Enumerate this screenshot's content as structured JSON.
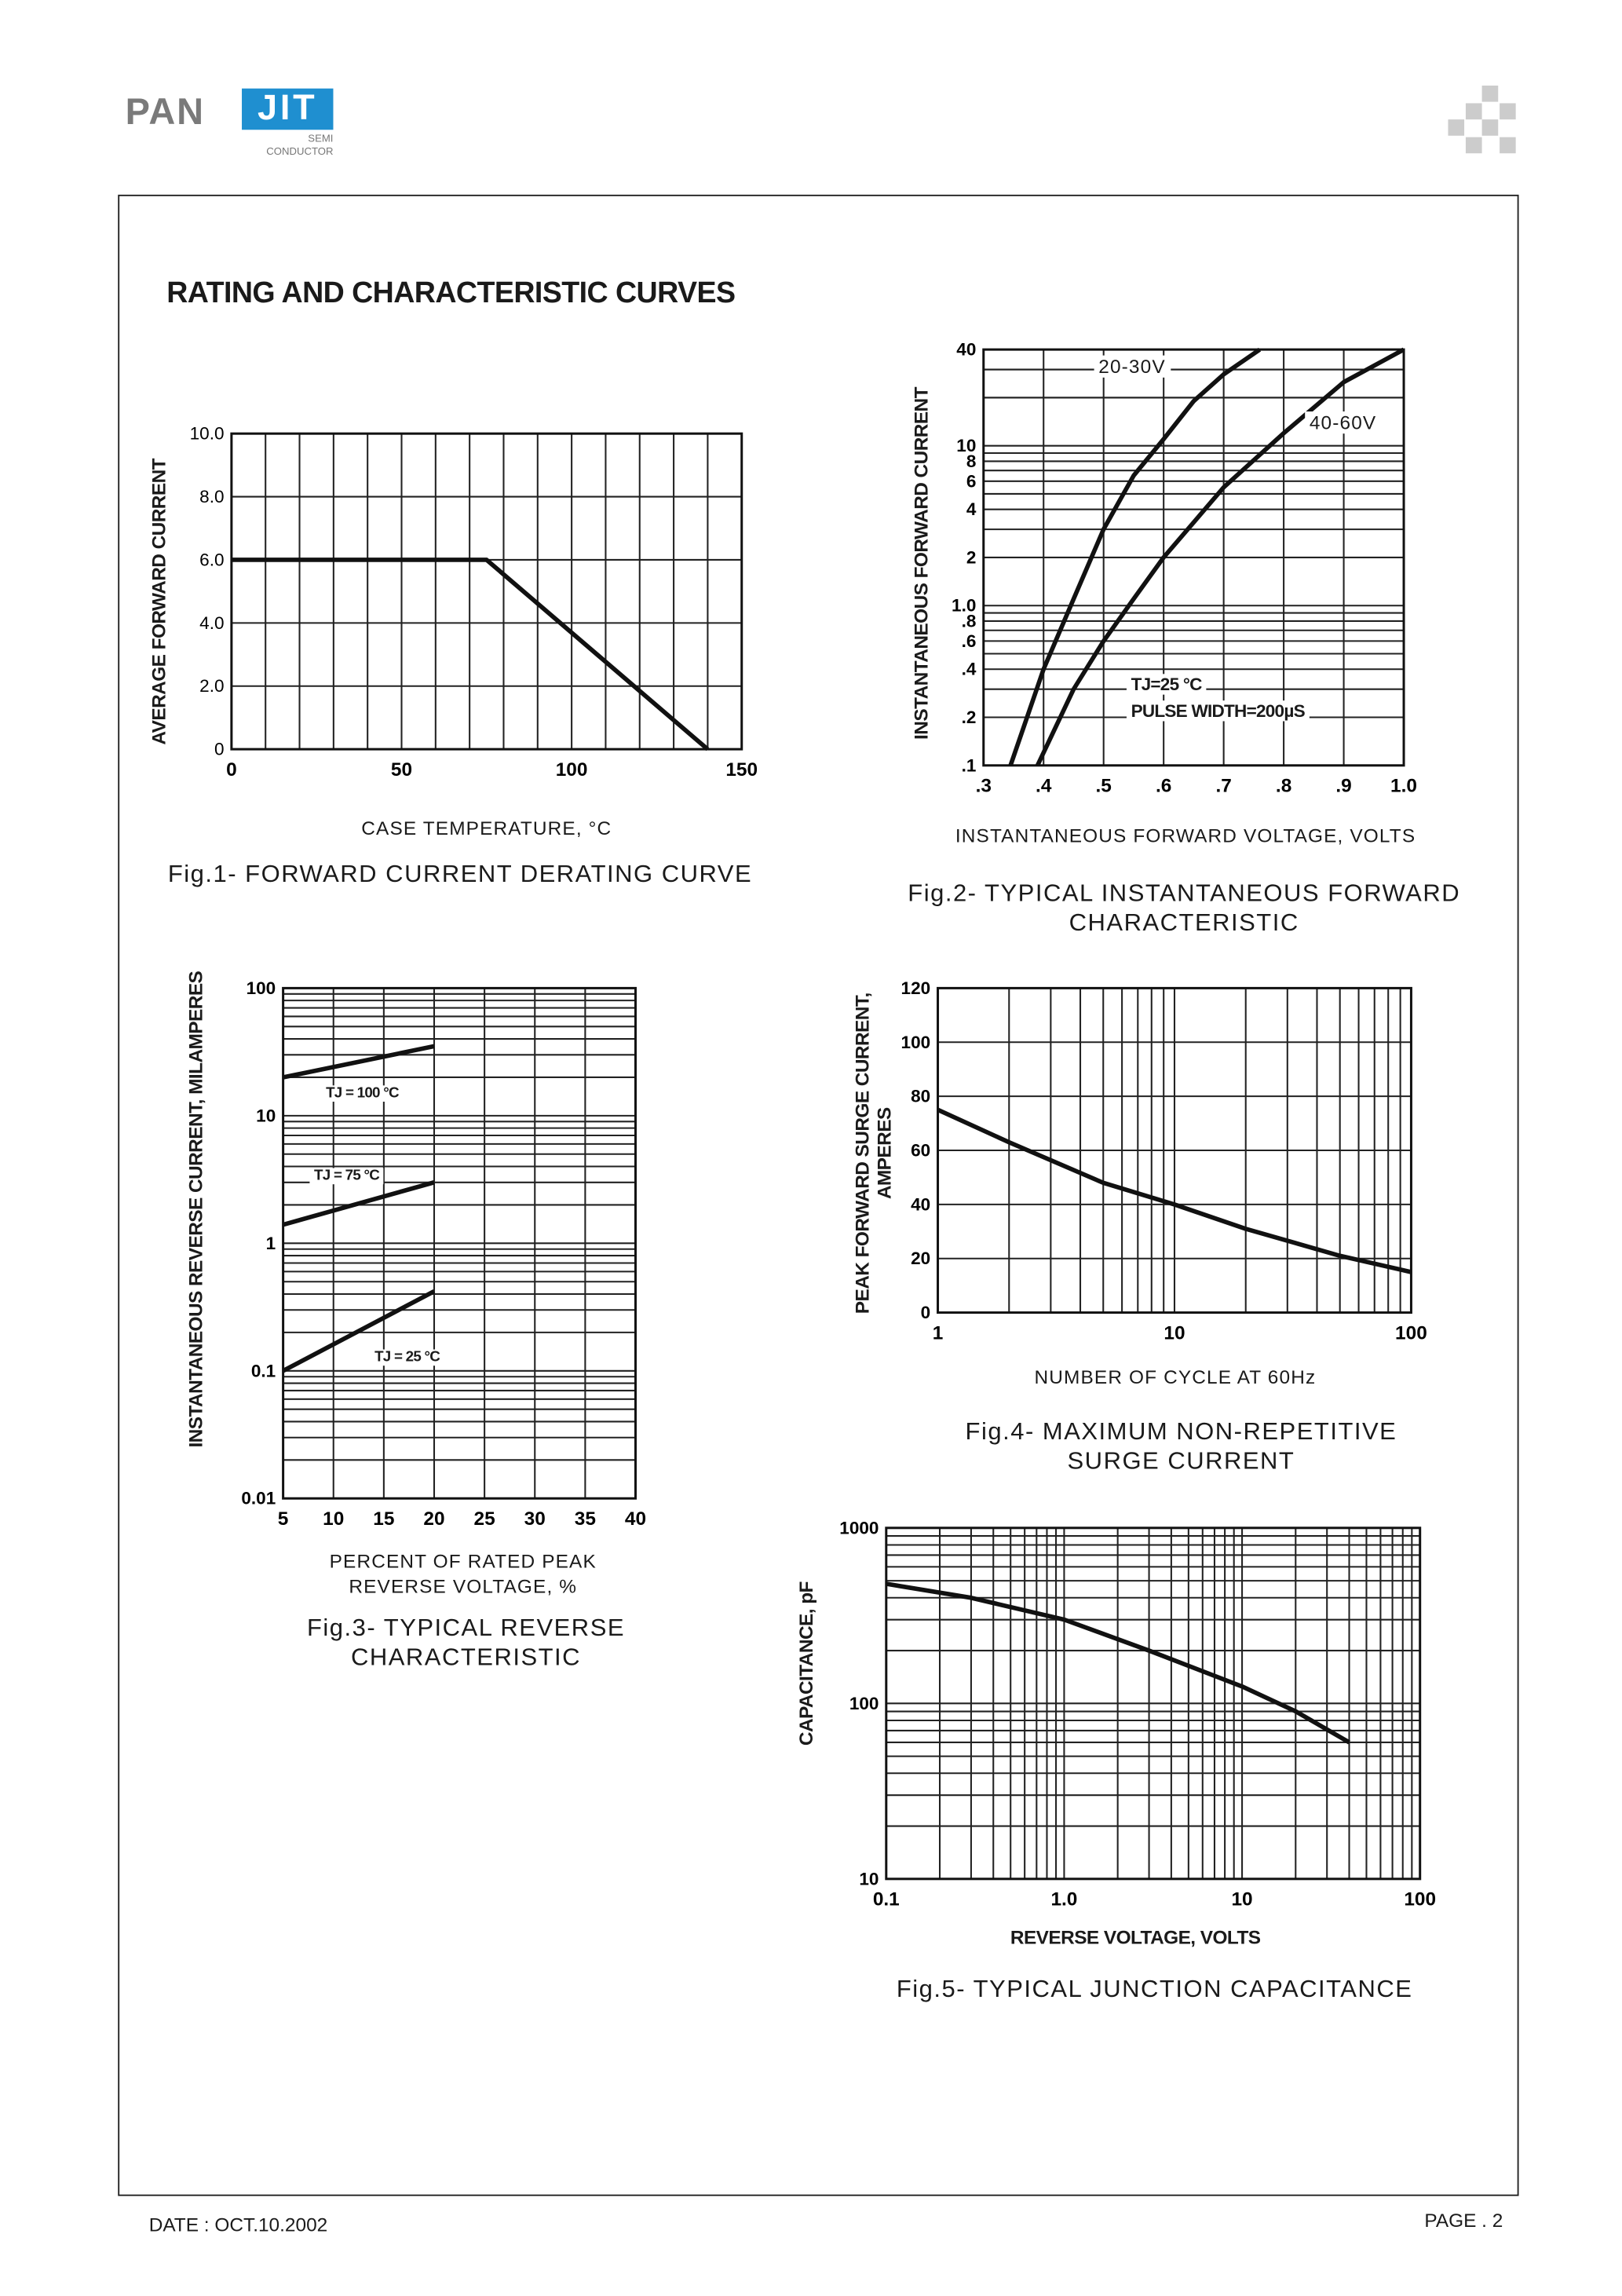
{
  "header": {
    "logo_text": "PANJIT",
    "logo_pan": "PAN",
    "logo_jit": "JIT",
    "logo_sub1": "SEMI",
    "logo_sub2": "CONDUCTOR",
    "brand_color": "#1f8fd0",
    "corner_icon": "checker-pattern-icon"
  },
  "title": "RATING AND CHARACTERISTIC CURVES",
  "footer": {
    "date": "DATE : OCT.10.2002",
    "page": "PAGE . 2"
  },
  "chart_data": [
    {
      "type": "line",
      "caption": "Fig.1- FORWARD CURRENT DERATING CURVE",
      "xlabel": "CASE TEMPERATURE, °C",
      "ylabel": "AVERAGE FORWARD CURRENT",
      "xscale": "linear",
      "yscale": "linear",
      "xlim": [
        0,
        150
      ],
      "ylim": [
        0,
        10
      ],
      "grid": true,
      "x_ticks": [
        {
          "v": 0,
          "l": "0"
        },
        {
          "v": 50,
          "l": "50"
        },
        {
          "v": 100,
          "l": "100"
        },
        {
          "v": 150,
          "l": "150"
        }
      ],
      "y_ticks": [
        {
          "v": 0,
          "l": "0"
        },
        {
          "v": 2,
          "l": "2.0"
        },
        {
          "v": 4,
          "l": "4.0"
        },
        {
          "v": 6,
          "l": "6.0"
        },
        {
          "v": 8,
          "l": "8.0"
        },
        {
          "v": 10,
          "l": "10.0"
        }
      ],
      "series": [
        {
          "points": [
            [
              0,
              6.0
            ],
            [
              75,
              6.0
            ],
            [
              140,
              0
            ]
          ]
        }
      ],
      "annotations": []
    },
    {
      "type": "line",
      "caption": [
        "Fig.2- TYPICAL INSTANTANEOUS FORWARD",
        "CHARACTERISTIC"
      ],
      "xlabel": "INSTANTANEOUS FORWARD VOLTAGE, VOLTS",
      "ylabel": "INSTANTANEOUS FORWARD CURRENT",
      "xscale": "linear",
      "yscale": "log",
      "xlim": [
        0.3,
        1.0
      ],
      "ylim": [
        0.1,
        40
      ],
      "grid": true,
      "x_ticks": [
        {
          "v": 0.3,
          "l": ".3"
        },
        {
          "v": 0.4,
          "l": ".4"
        },
        {
          "v": 0.5,
          "l": ".5"
        },
        {
          "v": 0.6,
          "l": ".6"
        },
        {
          "v": 0.7,
          "l": ".7"
        },
        {
          "v": 0.8,
          "l": ".8"
        },
        {
          "v": 0.9,
          "l": ".9"
        },
        {
          "v": 1.0,
          "l": "1.0"
        }
      ],
      "y_ticks": [
        {
          "v": 0.1,
          "l": ".1"
        },
        {
          "v": 0.2,
          "l": ".2"
        },
        {
          "v": 0.4,
          "l": ".4"
        },
        {
          "v": 0.6,
          "l": ".6"
        },
        {
          "v": 0.8,
          "l": ".8"
        },
        {
          "v": 1,
          "l": "1.0"
        },
        {
          "v": 2,
          "l": "2"
        },
        {
          "v": 4,
          "l": "4"
        },
        {
          "v": 6,
          "l": "6"
        },
        {
          "v": 8,
          "l": "8"
        },
        {
          "v": 10,
          "l": "10"
        },
        {
          "v": 40,
          "l": "40"
        }
      ],
      "series": [
        {
          "name": "20-30V",
          "points": [
            [
              0.345,
              0.1
            ],
            [
              0.4,
              0.4
            ],
            [
              0.45,
              1.1
            ],
            [
              0.5,
              3
            ],
            [
              0.55,
              6.5
            ],
            [
              0.6,
              11
            ],
            [
              0.65,
              19
            ],
            [
              0.7,
              28
            ],
            [
              0.76,
              40
            ]
          ]
        },
        {
          "name": "40-60V",
          "points": [
            [
              0.39,
              0.1
            ],
            [
              0.45,
              0.3
            ],
            [
              0.5,
              0.6
            ],
            [
              0.55,
              1.1
            ],
            [
              0.6,
              2
            ],
            [
              0.7,
              5.5
            ],
            [
              0.8,
              12
            ],
            [
              0.9,
              25
            ],
            [
              1.0,
              40
            ]
          ]
        }
      ],
      "annotations": [
        "20-30V",
        "40-60V",
        "TJ=25 °C",
        "PULSE WIDTH=200µS"
      ]
    },
    {
      "type": "line",
      "caption": [
        "Fig.3- TYPICAL REVERSE",
        "CHARACTERISTIC"
      ],
      "xlabel": [
        "PERCENT OF RATED PEAK",
        "REVERSE VOLTAGE, %"
      ],
      "ylabel": "INSTANTANEOUS REVERSE CURRENT, MILAMPERES",
      "xscale": "linear",
      "yscale": "log",
      "xlim": [
        5,
        40
      ],
      "ylim": [
        0.01,
        100
      ],
      "grid": true,
      "x_ticks": [
        {
          "v": 5,
          "l": "5"
        },
        {
          "v": 10,
          "l": "10"
        },
        {
          "v": 15,
          "l": "15"
        },
        {
          "v": 20,
          "l": "20"
        },
        {
          "v": 25,
          "l": "25"
        },
        {
          "v": 30,
          "l": "30"
        },
        {
          "v": 35,
          "l": "35"
        },
        {
          "v": 40,
          "l": "40"
        }
      ],
      "y_ticks": [
        {
          "v": 0.01,
          "l": "0.01"
        },
        {
          "v": 0.1,
          "l": "0.1"
        },
        {
          "v": 1,
          "l": "1"
        },
        {
          "v": 10,
          "l": "10"
        },
        {
          "v": 100,
          "l": "100"
        }
      ],
      "series": [
        {
          "name": "TJ = 100 °C",
          "points": [
            [
              5,
              20
            ],
            [
              20,
              35
            ]
          ]
        },
        {
          "name": "TJ = 75 °C",
          "points": [
            [
              5,
              1.4
            ],
            [
              20,
              3.0
            ]
          ]
        },
        {
          "name": "TJ = 25 °C",
          "points": [
            [
              5,
              0.1
            ],
            [
              20,
              0.42
            ]
          ]
        }
      ],
      "annotations": [
        "TJ = 100 °C",
        "TJ = 75 °C",
        "TJ = 25 °C"
      ]
    },
    {
      "type": "line",
      "caption": [
        "Fig.4- MAXIMUM NON-REPETITIVE",
        "SURGE CURRENT"
      ],
      "xlabel": "NUMBER OF CYCLE AT 60Hz",
      "ylabel": [
        "PEAK FORWARD SURGE CURRENT,",
        "AMPERES"
      ],
      "xscale": "log",
      "yscale": "linear",
      "xlim": [
        1,
        100
      ],
      "ylim": [
        0,
        120
      ],
      "grid": true,
      "x_ticks": [
        {
          "v": 1,
          "l": "1"
        },
        {
          "v": 10,
          "l": "10"
        },
        {
          "v": 100,
          "l": "100"
        }
      ],
      "y_ticks": [
        {
          "v": 0,
          "l": "0"
        },
        {
          "v": 20,
          "l": "20"
        },
        {
          "v": 40,
          "l": "40"
        },
        {
          "v": 60,
          "l": "60"
        },
        {
          "v": 80,
          "l": "80"
        },
        {
          "v": 100,
          "l": "100"
        },
        {
          "v": 120,
          "l": "120"
        }
      ],
      "series": [
        {
          "points": [
            [
              1,
              75
            ],
            [
              2,
              63
            ],
            [
              5,
              48
            ],
            [
              10,
              40
            ],
            [
              20,
              31
            ],
            [
              50,
              21
            ],
            [
              100,
              15
            ]
          ]
        }
      ],
      "annotations": []
    },
    {
      "type": "line",
      "caption": "Fig.5- TYPICAL JUNCTION CAPACITANCE",
      "xlabel": "REVERSE VOLTAGE, VOLTS",
      "ylabel": "CAPACITANCE, pF",
      "xscale": "log",
      "yscale": "log",
      "xlim": [
        0.1,
        100
      ],
      "ylim": [
        10,
        1000
      ],
      "grid": true,
      "x_ticks": [
        {
          "v": 0.1,
          "l": "0.1"
        },
        {
          "v": 1,
          "l": "1.0"
        },
        {
          "v": 10,
          "l": "10"
        },
        {
          "v": 100,
          "l": "100"
        }
      ],
      "y_ticks": [
        {
          "v": 10,
          "l": "10"
        },
        {
          "v": 100,
          "l": "100"
        },
        {
          "v": 1000,
          "l": "1000"
        }
      ],
      "series": [
        {
          "points": [
            [
              0.1,
              480
            ],
            [
              0.3,
              400
            ],
            [
              1,
              300
            ],
            [
              3,
              200
            ],
            [
              10,
              125
            ],
            [
              20,
              90
            ],
            [
              40,
              60
            ]
          ]
        }
      ],
      "annotations": []
    }
  ]
}
